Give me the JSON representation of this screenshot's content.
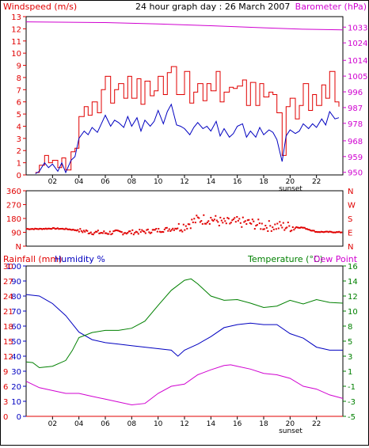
{
  "header": {
    "title": "24 hour graph day : 26 March 2007",
    "left_label": "Windspeed (m/s)",
    "right_label": "Barometer (hPa)"
  },
  "sunset_label": "sunset",
  "chart_data": [
    {
      "type": "line",
      "x_ticks": [
        "02",
        "04",
        "06",
        "08",
        "10",
        "12",
        "14",
        "16",
        "18",
        "20",
        "22"
      ],
      "xlim": [
        0,
        24
      ],
      "ylim_left": [
        0,
        13
      ],
      "yticks_left": [
        "0",
        "1",
        "2",
        "3",
        "4",
        "5",
        "6",
        "7",
        "8",
        "9",
        "10",
        "11",
        "12",
        "13"
      ],
      "ylim_right": [
        948.5,
        1039
      ],
      "yticks_right": [
        "950",
        "959",
        "968",
        "978",
        "987",
        "996",
        "1005",
        "1014",
        "1024",
        "1033"
      ],
      "colors": {
        "gust": "#e00000",
        "average": "#0000c0",
        "barometer": "#d000d0"
      },
      "barometer": {
        "x": [
          0,
          6,
          10,
          14,
          18,
          21,
          24
        ],
        "y": [
          1036,
          1035.6,
          1034.8,
          1033.8,
          1032.6,
          1031.8,
          1031.4
        ]
      },
      "wind_gust": {
        "x": [
          0.7,
          1.0,
          1.4,
          1.7,
          2.0,
          2.4,
          2.7,
          3.0,
          3.4,
          3.7,
          4.0,
          4.4,
          4.7,
          5.0,
          5.4,
          5.7,
          6.0,
          6.4,
          6.7,
          7.0,
          7.4,
          7.7,
          8.0,
          8.4,
          8.7,
          9.0,
          9.4,
          9.7,
          10.0,
          10.4,
          10.7,
          11.0,
          11.4,
          11.7,
          12.0,
          12.4,
          12.7,
          13.0,
          13.4,
          13.7,
          14.0,
          14.4,
          14.7,
          15.0,
          15.4,
          15.7,
          16.0,
          16.4,
          16.7,
          17.0,
          17.4,
          17.7,
          18.0,
          18.4,
          18.7,
          19.0,
          19.4,
          19.7,
          20.0,
          20.4,
          20.7,
          21.0,
          21.4,
          21.7,
          22.0,
          22.4,
          22.7,
          23.0,
          23.4,
          23.7
        ],
        "y": [
          0.2,
          0.8,
          1.6,
          1.0,
          1.2,
          0.6,
          1.4,
          0.4,
          1.9,
          2.2,
          4.8,
          5.6,
          4.9,
          6.0,
          5.1,
          7.0,
          8.1,
          5.9,
          7.0,
          7.5,
          6.3,
          8.1,
          6.3,
          7.9,
          5.8,
          7.7,
          6.5,
          6.9,
          8.1,
          6.6,
          8.4,
          8.9,
          6.6,
          6.6,
          8.5,
          5.9,
          6.8,
          7.5,
          6.1,
          7.5,
          6.9,
          8.5,
          6.0,
          6.8,
          7.2,
          7.1,
          7.3,
          7.8,
          5.7,
          7.6,
          5.7,
          7.5,
          6.4,
          6.8,
          6.6,
          5.1,
          1.6,
          5.6,
          6.3,
          4.6,
          5.7,
          7.5,
          5.3,
          6.6,
          5.7,
          7.4,
          6.3,
          8.5,
          6.0,
          5.6
        ]
      },
      "wind_average": {
        "x": [
          0.7,
          1.0,
          1.4,
          1.7,
          2.0,
          2.4,
          2.7,
          3.0,
          3.4,
          3.7,
          4.0,
          4.4,
          4.7,
          5.0,
          5.4,
          5.7,
          6.0,
          6.4,
          6.7,
          7.0,
          7.4,
          7.7,
          8.0,
          8.4,
          8.7,
          9.0,
          9.4,
          9.7,
          10.0,
          10.4,
          10.7,
          11.0,
          11.4,
          11.7,
          12.0,
          12.4,
          12.7,
          13.0,
          13.4,
          13.7,
          14.0,
          14.4,
          14.7,
          15.0,
          15.4,
          15.7,
          16.0,
          16.4,
          16.7,
          17.0,
          17.4,
          17.7,
          18.0,
          18.4,
          18.7,
          19.0,
          19.4,
          19.7,
          20.0,
          20.4,
          20.7,
          21.0,
          21.4,
          21.7,
          22.0,
          22.4,
          22.7,
          23.0,
          23.4,
          23.7
        ],
        "y": [
          0.1,
          0.3,
          1.0,
          0.6,
          0.9,
          0.3,
          1.0,
          0.2,
          1.2,
          1.5,
          3.0,
          3.6,
          3.3,
          3.9,
          3.5,
          4.2,
          4.9,
          4.0,
          4.5,
          4.3,
          3.9,
          4.8,
          4.0,
          4.7,
          3.6,
          4.5,
          4.0,
          4.4,
          5.3,
          4.2,
          5.2,
          5.8,
          4.1,
          4.0,
          3.8,
          3.3,
          3.9,
          4.3,
          3.8,
          4.0,
          3.6,
          4.4,
          3.2,
          3.8,
          3.1,
          3.4,
          4.0,
          4.2,
          3.1,
          3.6,
          3.1,
          3.9,
          3.3,
          3.7,
          3.5,
          2.9,
          1.1,
          3.2,
          3.7,
          3.4,
          3.6,
          4.2,
          3.8,
          4.2,
          3.9,
          4.6,
          4.1,
          5.2,
          4.6,
          4.7
        ]
      }
    },
    {
      "type": "scatter",
      "x_ticks": [],
      "xlim": [
        0,
        24
      ],
      "ylim_left": [
        0,
        360
      ],
      "yticks_left": [
        "N",
        "90",
        "180",
        "270",
        "360"
      ],
      "yticks_right": [
        "N",
        "E",
        "S",
        "W",
        "N"
      ],
      "color": "#e00000",
      "wind_direction": {
        "x": [
          0,
          1,
          2,
          3,
          4,
          5,
          6,
          7,
          8,
          9,
          10,
          11,
          12,
          13,
          14,
          15,
          16,
          17,
          18,
          19,
          20,
          21,
          22,
          23,
          24
        ],
        "y": [
          112,
          112,
          115,
          112,
          102,
          90,
          86,
          90,
          90,
          95,
          103,
          112,
          133,
          172,
          178,
          150,
          156,
          150,
          132,
          130,
          126,
          120,
          93,
          92,
          90
        ]
      }
    },
    {
      "type": "line",
      "left_labels": [
        "Rainfall (mm)",
        "Humidity %"
      ],
      "right_labels": [
        "Temperature (°C)",
        "Dew Point"
      ],
      "x_ticks": [
        "02",
        "04",
        "06",
        "08",
        "10",
        "12",
        "14",
        "16",
        "18",
        "20",
        "22"
      ],
      "xlim": [
        0,
        24
      ],
      "ylim_humidity": [
        0,
        100
      ],
      "yticks_humidity": [
        "0",
        "10",
        "20",
        "30",
        "40",
        "50",
        "60",
        "70",
        "80",
        "90",
        "100"
      ],
      "yticks_rainfall": [
        "0",
        "3",
        "6",
        "9",
        "12",
        "15",
        "18",
        "21",
        "24",
        "27",
        "30"
      ],
      "ylim_temperature": [
        -5,
        16
      ],
      "yticks_temperature": [
        "-5",
        "-3",
        "-1",
        "1",
        "3",
        "5",
        "8",
        "10",
        "12",
        "14",
        "16"
      ],
      "colors": {
        "humidity": "#0000c0",
        "temperature": "#008000",
        "dew_point": "#d000d0",
        "rainfall": "#e00000"
      },
      "humidity": {
        "x": [
          0,
          1,
          2,
          3,
          4,
          5,
          6,
          7,
          8,
          9,
          10,
          11,
          11.5,
          12,
          13,
          14,
          15,
          16,
          17,
          18,
          19,
          20,
          21,
          22,
          23,
          24
        ],
        "y": [
          81,
          80,
          75,
          67,
          56,
          51,
          49,
          48,
          47,
          46,
          45,
          44,
          40,
          44,
          48,
          53,
          59,
          61,
          62,
          61,
          61,
          55,
          52,
          46,
          44,
          44
        ]
      },
      "temperature": {
        "x": [
          0,
          0.5,
          1,
          2,
          3,
          3.5,
          4,
          5,
          6,
          7,
          8,
          9,
          10,
          11,
          12,
          12.5,
          13,
          14,
          15,
          16,
          17,
          18,
          19,
          20,
          21,
          22,
          23,
          24
        ],
        "y": [
          2.6,
          2.5,
          1.8,
          2.0,
          2.8,
          4.2,
          6.0,
          6.7,
          7.0,
          7.0,
          7.3,
          8.3,
          10.5,
          12.6,
          14.0,
          14.2,
          13.5,
          11.8,
          11.2,
          11.3,
          10.8,
          10.2,
          10.4,
          11.2,
          10.7,
          11.3,
          10.9,
          10.8
        ]
      },
      "dew_point": {
        "x": [
          0,
          1,
          2,
          3,
          4,
          5,
          6,
          7,
          8,
          9,
          10,
          11,
          12,
          13,
          14,
          15,
          15.5,
          16,
          17,
          18,
          19,
          20,
          21,
          22,
          23,
          24
        ],
        "y": [
          -0.1,
          -1.0,
          -1.4,
          -1.8,
          -1.8,
          -2.2,
          -2.6,
          -3.0,
          -3.4,
          -3.2,
          -1.8,
          -0.8,
          -0.5,
          0.8,
          1.5,
          2.1,
          2.2,
          2.0,
          1.6,
          1.0,
          0.8,
          0.3,
          -0.8,
          -1.2,
          -2.0,
          -2.5
        ]
      },
      "rainfall": {
        "x": [
          0,
          24
        ],
        "y": [
          0,
          0
        ]
      }
    }
  ]
}
